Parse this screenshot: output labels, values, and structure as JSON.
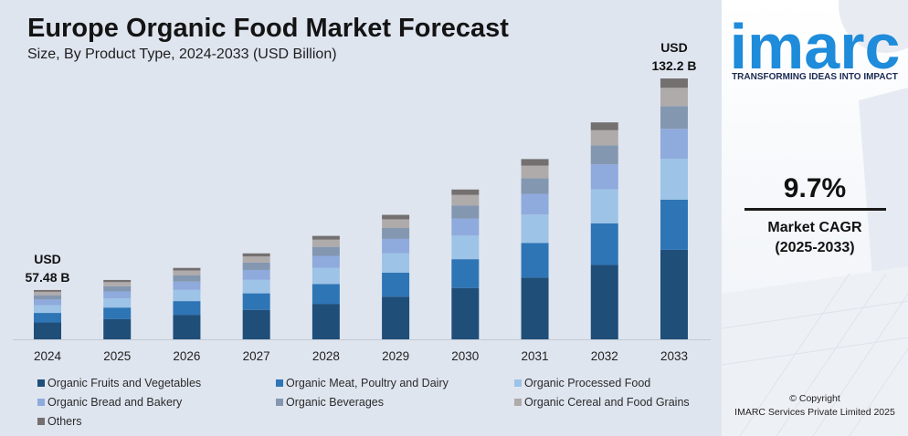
{
  "colors": {
    "panel_background": "#dfe5ef",
    "brand_blue": "#1e8bdb",
    "brand_navy": "#1b2a52",
    "text_dark": "#141414"
  },
  "chart_data": {
    "type": "bar",
    "stacked": true,
    "title": "Europe Organic Food Market Forecast",
    "subtitle": "Size, By Product Type, 2024-2033 (USD Billion)",
    "categories": [
      "2024",
      "2025",
      "2026",
      "2027",
      "2028",
      "2029",
      "2030",
      "2031",
      "2032",
      "2033"
    ],
    "series": [
      {
        "name": "Organic Fruits and Vegetables",
        "color": "#1f4e79",
        "values": [
          19.72,
          21.63,
          23.73,
          26.03,
          28.55,
          31.32,
          34.36,
          37.69,
          41.34,
          45.35
        ]
      },
      {
        "name": "Organic Meat, Poultry and Dairy",
        "color": "#2e75b6",
        "values": [
          11.04,
          12.11,
          13.28,
          14.57,
          15.98,
          17.53,
          19.23,
          21.1,
          23.15,
          25.38
        ]
      },
      {
        "name": "Organic Processed Food",
        "color": "#9dc3e6",
        "values": [
          9.02,
          9.9,
          10.86,
          11.91,
          13.07,
          14.34,
          15.73,
          17.25,
          18.93,
          20.76
        ]
      },
      {
        "name": "Organic Bread and Bakery",
        "color": "#8faadc",
        "values": [
          6.61,
          7.25,
          7.95,
          8.73,
          9.57,
          10.5,
          11.52,
          12.64,
          13.86,
          15.2
        ]
      },
      {
        "name": "Organic Beverages",
        "color": "#8497b0",
        "values": [
          5.0,
          5.49,
          6.02,
          6.6,
          7.24,
          7.95,
          8.72,
          9.56,
          10.49,
          11.5
        ]
      },
      {
        "name": "Organic Cereal and Food Grains",
        "color": "#afabab",
        "values": [
          4.02,
          4.41,
          4.84,
          5.31,
          5.83,
          6.39,
          7.01,
          7.69,
          8.44,
          9.25
        ]
      },
      {
        "name": "Others",
        "color": "#747070",
        "values": [
          2.07,
          2.27,
          2.49,
          2.73,
          3.0,
          3.29,
          3.61,
          3.96,
          4.34,
          4.76
        ]
      }
    ],
    "data_labels": [
      {
        "category_index": 0,
        "unit": "USD",
        "value": "57.48 B"
      },
      {
        "category_index": 9,
        "unit": "USD",
        "value": "132.2 B"
      }
    ],
    "legend": "bottom",
    "grid": false
  },
  "brand": {
    "logo_text": "imarc",
    "tagline": "TRANSFORMING IDEAS INTO IMPACT"
  },
  "cagr": {
    "value": "9.7%",
    "label": "Market CAGR",
    "period": "(2025-2033)"
  },
  "footer": {
    "copyright": "© Copyright",
    "company": "IMARC Services Private Limited 2025"
  }
}
